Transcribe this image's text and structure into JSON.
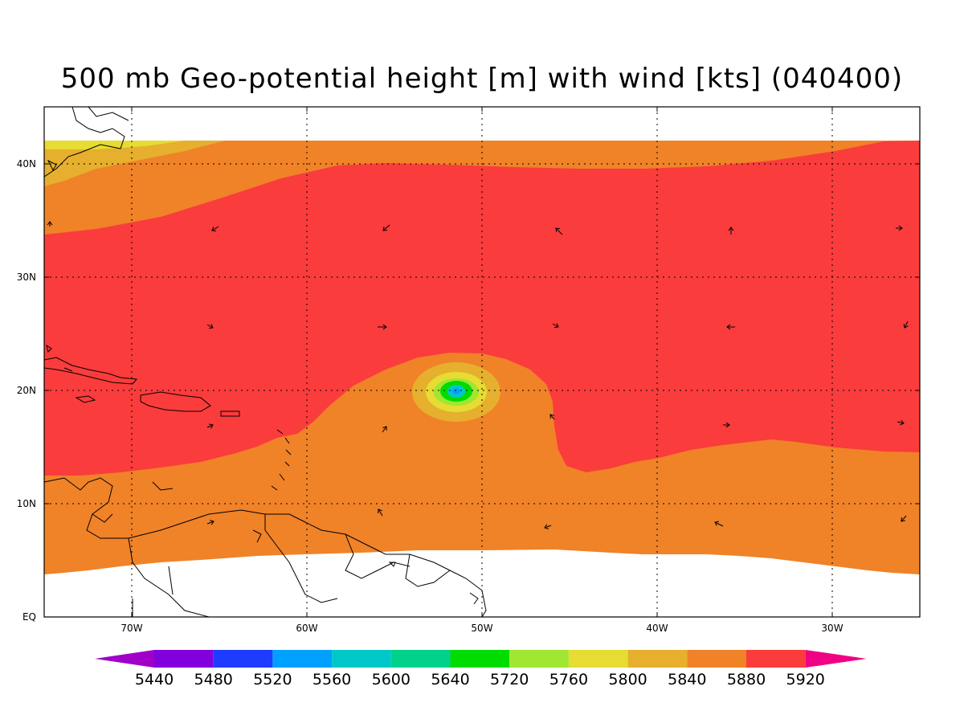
{
  "title": "500 mb Geo-potential height [m] with wind [kts] (040400)",
  "longitude_ticks": [
    "70W",
    "60W",
    "50W",
    "40W",
    "30W"
  ],
  "latitude_ticks": [
    "EQ",
    "10N",
    "20N",
    "30N",
    "40N"
  ],
  "colorbar": {
    "labels": [
      "5440",
      "5480",
      "5520",
      "5560",
      "5600",
      "5640",
      "5720",
      "5760",
      "5800",
      "5840",
      "5880",
      "5920"
    ],
    "colors": [
      "#a000c8",
      "#8200dc",
      "#1e3cff",
      "#00a0ff",
      "#00c8c8",
      "#00d28c",
      "#00dc00",
      "#a0e632",
      "#e6dc32",
      "#e6af2d",
      "#f08228",
      "#fa3c3c",
      "#f00082"
    ]
  },
  "map_extent": {
    "lon_min": -75,
    "lon_max": -25,
    "lat_min": 0,
    "lat_max": 45
  },
  "colors": {
    "band_5920": "#fa3c3c",
    "band_5880": "#f08228",
    "band_5840": "#e6af2d",
    "band_5800": "#e6dc32",
    "band_5760": "#a0e632",
    "band_5720": "#00dc00",
    "band_5640": "#00c8c8",
    "band_5520": "#00a0ff"
  }
}
